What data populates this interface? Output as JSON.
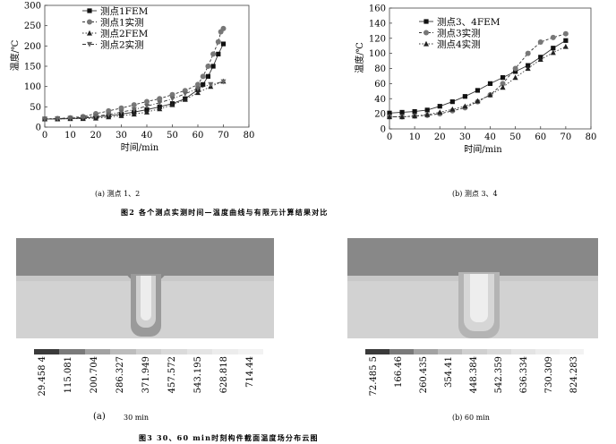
{
  "chart_data": [
    {
      "type": "line",
      "xlabel": "时间/min",
      "ylabel": "温度/℃",
      "xlim": [
        0,
        80
      ],
      "ylim": [
        0,
        300
      ],
      "xticks": [
        "0",
        "10",
        "20",
        "30",
        "40",
        "50",
        "60",
        "70",
        "80"
      ],
      "yticks": [
        "0",
        "50",
        "100",
        "150",
        "200",
        "250",
        "300"
      ],
      "legend_position": "top-left",
      "series": [
        {
          "name": "测点1FEM",
          "marker": "square",
          "x": [
            0,
            5,
            10,
            15,
            20,
            25,
            30,
            35,
            40,
            45,
            50,
            55,
            60,
            62,
            64,
            66,
            68,
            70
          ],
          "y": [
            20,
            20,
            21,
            22,
            25,
            28,
            32,
            37,
            43,
            50,
            58,
            70,
            92,
            105,
            125,
            150,
            180,
            205
          ]
        },
        {
          "name": "测点1实测",
          "marker": "circle",
          "x": [
            0,
            5,
            10,
            15,
            20,
            25,
            30,
            35,
            40,
            45,
            50,
            55,
            60,
            62,
            64,
            66,
            68,
            69,
            70
          ],
          "y": [
            20,
            21,
            23,
            26,
            33,
            40,
            47,
            55,
            63,
            70,
            80,
            90,
            105,
            125,
            150,
            180,
            210,
            235,
            243
          ]
        },
        {
          "name": "测点2FEM",
          "marker": "triangle-up",
          "x": [
            0,
            5,
            10,
            15,
            20,
            25,
            30,
            35,
            40,
            45,
            50,
            55,
            60,
            65,
            70
          ],
          "y": [
            20,
            20,
            21,
            21,
            22,
            25,
            28,
            32,
            37,
            45,
            55,
            68,
            85,
            100,
            113
          ]
        },
        {
          "name": "测点2实测",
          "marker": "triangle-down",
          "x": [
            0,
            5,
            10,
            15,
            20,
            25,
            30,
            35,
            40,
            45,
            50,
            55,
            60,
            65,
            70
          ],
          "y": [
            20,
            21,
            22,
            24,
            27,
            31,
            37,
            43,
            52,
            60,
            70,
            82,
            95,
            105,
            112
          ]
        }
      ]
    },
    {
      "type": "line",
      "xlabel": "时间/min",
      "ylabel": "温度/℃",
      "xlim": [
        0,
        80
      ],
      "ylim": [
        0,
        160
      ],
      "xticks": [
        "0",
        "10",
        "20",
        "30",
        "40",
        "50",
        "60",
        "70",
        "80"
      ],
      "yticks": [
        "0",
        "20",
        "40",
        "60",
        "80",
        "100",
        "120",
        "140",
        "160"
      ],
      "legend_position": "top-left",
      "series": [
        {
          "name": "测点3、4FEM",
          "marker": "square",
          "x": [
            0,
            5,
            10,
            15,
            20,
            25,
            30,
            35,
            40,
            45,
            50,
            55,
            60,
            65,
            70
          ],
          "y": [
            21,
            22,
            23,
            25,
            30,
            36,
            43,
            51,
            60,
            68,
            76,
            84,
            95,
            107,
            117
          ]
        },
        {
          "name": "测点3实测",
          "marker": "circle",
          "x": [
            0,
            5,
            10,
            15,
            20,
            25,
            30,
            35,
            40,
            45,
            50,
            55,
            60,
            65,
            70
          ],
          "y": [
            16,
            16,
            17,
            18,
            20,
            24,
            28,
            36,
            45,
            60,
            80,
            100,
            115,
            121,
            126
          ]
        },
        {
          "name": "测点4实测",
          "marker": "triangle-up",
          "x": [
            0,
            5,
            10,
            15,
            20,
            25,
            30,
            35,
            40,
            45,
            50,
            55,
            60,
            65,
            70
          ],
          "y": [
            16,
            16,
            17,
            19,
            22,
            26,
            30,
            37,
            45,
            55,
            68,
            80,
            92,
            101,
            109
          ]
        }
      ]
    }
  ],
  "captions": {
    "sub_a": "(a) 测点 1、2",
    "sub_b": "(b) 测点 3、4",
    "fig2": "图2 各个测点实测时间—温度曲线与有限元计算结果对比",
    "sub3a_label": "(a)",
    "sub3a_time": "30 min",
    "sub3b": "(b) 60 min",
    "fig3": "图3 30、60 min时刻构件截面温度场分布云图"
  },
  "temperature_map_a": {
    "scale_labels": [
      "29.458 4",
      "115.081",
      "200.704",
      "286.327",
      "371.949",
      "457.572",
      "543.195",
      "628.818",
      "714.44"
    ],
    "colors": [
      "#3a3a3a",
      "#5e5e5e",
      "#8a8a8a",
      "#a8a8a8",
      "#c0c0c0",
      "#d0d0d0",
      "#dcdcdc",
      "#e6e6e6",
      "#eeeeee"
    ]
  },
  "temperature_map_b": {
    "scale_labels": [
      "72.485 5",
      "166.46",
      "260.435",
      "354.41",
      "448.384",
      "542.359",
      "636.334",
      "730.309",
      "824.283"
    ],
    "colors": [
      "#3a3a3a",
      "#5e5e5e",
      "#8a8a8a",
      "#a8a8a8",
      "#c0c0c0",
      "#d0d0d0",
      "#dcdcdc",
      "#e6e6e6",
      "#eeeeee"
    ]
  }
}
